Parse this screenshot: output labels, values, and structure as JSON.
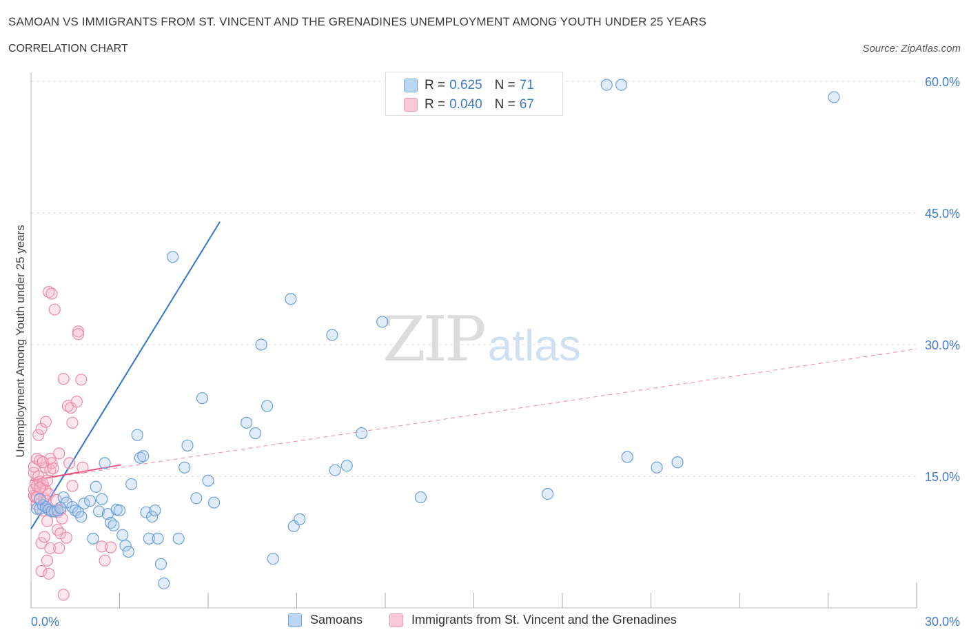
{
  "header": {
    "title": "SAMOAN VS IMMIGRANTS FROM ST. VINCENT AND THE GRENADINES UNEMPLOYMENT AMONG YOUTH UNDER 25 YEARS",
    "subtitle": "CORRELATION CHART",
    "source": "Source: ZipAtlas.com"
  },
  "watermark": {
    "zip": "ZIP",
    "atlas": "atlas"
  },
  "legend": {
    "series1": {
      "r_label": "R =",
      "r_value": "0.625",
      "n_label": "N =",
      "n_value": "71"
    },
    "series2": {
      "r_label": "R =",
      "r_value": "0.040",
      "n_label": "N =",
      "n_value": "67"
    }
  },
  "bottom_legend": {
    "series1": "Samoans",
    "series2": "Immigrants from St. Vincent and the Grenadines"
  },
  "colors": {
    "blue_fill": "#a9c8ee",
    "blue_stroke": "#6a9fd8",
    "blue_line": "#2f74d0",
    "pink_fill": "#f6b8cb",
    "pink_stroke": "#ec8aa8",
    "pink_line": "#e8517f",
    "grid": "#e3e3e3",
    "tick_text": "#3d7cc9"
  },
  "chart_data": {
    "type": "scatter",
    "ylabel": "Unemployment Among Youth under 25 years",
    "xlabel": "",
    "xlim": [
      0,
      30
    ],
    "ylim": [
      0,
      60
    ],
    "x_tick_labels": [
      "0.0%",
      "30.0%"
    ],
    "y_ticks": [
      15,
      30,
      45,
      60
    ],
    "y_tick_labels": [
      "15.0%",
      "30.0%",
      "45.0%",
      "60.0%"
    ],
    "grid": true,
    "series": [
      {
        "name": "Samoans",
        "color": "#a9c8ee",
        "trendline": {
          "x": [
            0,
            6.4
          ],
          "y": [
            9.0,
            44.0
          ],
          "style": "solid"
        },
        "points": [
          [
            0.2,
            11.3
          ],
          [
            0.3,
            11.3
          ],
          [
            0.4,
            11.7
          ],
          [
            0.5,
            11.5
          ],
          [
            0.6,
            11.2
          ],
          [
            0.7,
            11.0
          ],
          [
            0.8,
            11.0
          ],
          [
            0.9,
            11.1
          ],
          [
            1.1,
            12.6
          ],
          [
            1.2,
            12.0
          ],
          [
            1.4,
            11.5
          ],
          [
            1.5,
            11.1
          ],
          [
            1.6,
            10.9
          ],
          [
            1.7,
            10.4
          ],
          [
            1.8,
            11.9
          ],
          [
            2.0,
            12.2
          ],
          [
            2.1,
            7.9
          ],
          [
            2.2,
            13.8
          ],
          [
            2.3,
            11.0
          ],
          [
            2.4,
            12.4
          ],
          [
            2.5,
            16.5
          ],
          [
            2.6,
            10.7
          ],
          [
            2.7,
            9.7
          ],
          [
            2.8,
            9.4
          ],
          [
            2.9,
            11.2
          ],
          [
            3.0,
            11.1
          ],
          [
            3.1,
            8.3
          ],
          [
            3.2,
            7.1
          ],
          [
            3.3,
            6.4
          ],
          [
            3.4,
            14.1
          ],
          [
            3.6,
            19.7
          ],
          [
            3.7,
            17.1
          ],
          [
            3.8,
            17.3
          ],
          [
            3.9,
            10.9
          ],
          [
            4.0,
            7.9
          ],
          [
            4.1,
            10.4
          ],
          [
            4.2,
            11.1
          ],
          [
            4.3,
            7.9
          ],
          [
            4.4,
            5.0
          ],
          [
            4.5,
            2.8
          ],
          [
            4.8,
            40.0
          ],
          [
            5.0,
            7.9
          ],
          [
            5.2,
            16.0
          ],
          [
            5.3,
            18.5
          ],
          [
            5.6,
            12.5
          ],
          [
            5.8,
            23.9
          ],
          [
            6.0,
            14.5
          ],
          [
            6.2,
            12.0
          ],
          [
            7.3,
            21.1
          ],
          [
            7.6,
            19.9
          ],
          [
            7.8,
            30.0
          ],
          [
            8.0,
            23.0
          ],
          [
            8.2,
            5.6
          ],
          [
            8.8,
            35.2
          ],
          [
            8.9,
            9.3
          ],
          [
            9.1,
            10.1
          ],
          [
            10.2,
            31.1
          ],
          [
            10.3,
            15.7
          ],
          [
            10.7,
            16.2
          ],
          [
            11.2,
            19.9
          ],
          [
            11.9,
            32.6
          ],
          [
            13.2,
            12.6
          ],
          [
            17.5,
            13.0
          ],
          [
            19.5,
            59.6
          ],
          [
            20.0,
            59.6
          ],
          [
            20.2,
            17.2
          ],
          [
            21.2,
            16.0
          ],
          [
            21.9,
            16.6
          ],
          [
            27.2,
            58.2
          ],
          [
            0.3,
            12.4
          ],
          [
            1.0,
            11.4
          ]
        ]
      },
      {
        "name": "Immigrants from St. Vincent and the Grenadines",
        "color": "#f6b8cb",
        "trendline": {
          "x": [
            0,
            3.05
          ],
          "y": [
            14.5,
            16.3
          ],
          "style": "solid"
        },
        "trendline_extended": {
          "x": [
            0,
            30
          ],
          "y": [
            14.5,
            29.5
          ],
          "style": "dashed"
        },
        "points": [
          [
            0.1,
            12.8
          ],
          [
            0.1,
            13.5
          ],
          [
            0.1,
            15.4
          ],
          [
            0.1,
            16.1
          ],
          [
            0.15,
            12.6
          ],
          [
            0.15,
            14.2
          ],
          [
            0.2,
            13.9
          ],
          [
            0.2,
            11.8
          ],
          [
            0.2,
            17.0
          ],
          [
            0.25,
            19.7
          ],
          [
            0.25,
            15.0
          ],
          [
            0.3,
            12.4
          ],
          [
            0.3,
            14.4
          ],
          [
            0.3,
            16.8
          ],
          [
            0.35,
            20.4
          ],
          [
            0.35,
            7.4
          ],
          [
            0.35,
            4.2
          ],
          [
            0.4,
            13.9
          ],
          [
            0.4,
            14.2
          ],
          [
            0.4,
            11.1
          ],
          [
            0.45,
            12.5
          ],
          [
            0.45,
            8.1
          ],
          [
            0.5,
            21.2
          ],
          [
            0.5,
            16.0
          ],
          [
            0.5,
            13.4
          ],
          [
            0.5,
            12.2
          ],
          [
            0.55,
            9.9
          ],
          [
            0.55,
            5.4
          ],
          [
            0.6,
            36.0
          ],
          [
            0.6,
            13.0
          ],
          [
            0.6,
            3.9
          ],
          [
            0.65,
            17.0
          ],
          [
            0.65,
            15.7
          ],
          [
            0.65,
            6.8
          ],
          [
            0.7,
            35.8
          ],
          [
            0.7,
            16.5
          ],
          [
            0.75,
            15.9
          ],
          [
            0.75,
            11.0
          ],
          [
            0.8,
            34.0
          ],
          [
            0.85,
            12.3
          ],
          [
            0.9,
            10.9
          ],
          [
            0.9,
            8.9
          ],
          [
            0.95,
            17.6
          ],
          [
            0.95,
            6.8
          ],
          [
            1.0,
            11.2
          ],
          [
            1.0,
            8.5
          ],
          [
            1.05,
            10.2
          ],
          [
            1.1,
            26.1
          ],
          [
            1.1,
            1.5
          ],
          [
            1.2,
            8.0
          ],
          [
            1.25,
            23.0
          ],
          [
            1.3,
            16.5
          ],
          [
            1.35,
            22.8
          ],
          [
            1.4,
            13.9
          ],
          [
            1.4,
            21.1
          ],
          [
            1.55,
            23.5
          ],
          [
            1.6,
            31.5
          ],
          [
            1.6,
            31.2
          ],
          [
            1.7,
            26.0
          ],
          [
            1.75,
            16.0
          ],
          [
            2.4,
            7.0
          ],
          [
            2.5,
            5.4
          ],
          [
            2.7,
            6.9
          ],
          [
            0.2,
            12.6
          ],
          [
            0.3,
            13.7
          ],
          [
            0.4,
            16.6
          ],
          [
            0.55,
            14.5
          ]
        ]
      }
    ]
  }
}
